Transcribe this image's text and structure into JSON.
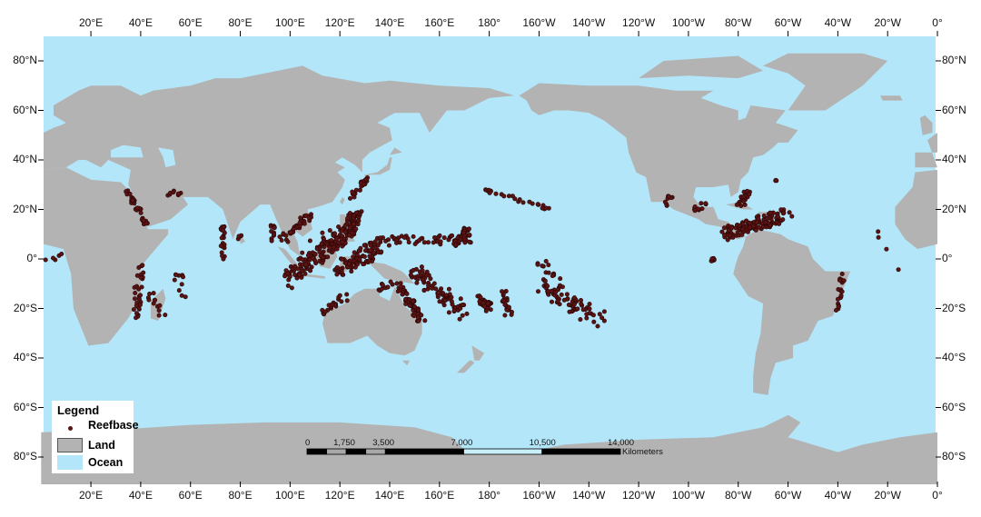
{
  "map": {
    "projection": "equirectangular",
    "central_meridian": 180,
    "colors": {
      "ocean": "#b3e6f8",
      "land": "#b3b3b3",
      "reef": "#5b1414",
      "frame": "#ffffff"
    },
    "lon_ticks": [
      {
        "lon": 20,
        "label": "20°E"
      },
      {
        "lon": 40,
        "label": "40°E"
      },
      {
        "lon": 60,
        "label": "60°E"
      },
      {
        "lon": 80,
        "label": "80°E"
      },
      {
        "lon": 100,
        "label": "100°E"
      },
      {
        "lon": 120,
        "label": "120°E"
      },
      {
        "lon": 140,
        "label": "140°E"
      },
      {
        "lon": 160,
        "label": "160°E"
      },
      {
        "lon": 180,
        "label": "180°"
      },
      {
        "lon": 200,
        "label": "160°W"
      },
      {
        "lon": 220,
        "label": "140°W"
      },
      {
        "lon": 240,
        "label": "120°W"
      },
      {
        "lon": 260,
        "label": "100°W"
      },
      {
        "lon": 280,
        "label": "80°W"
      },
      {
        "lon": 300,
        "label": "60°W"
      },
      {
        "lon": 320,
        "label": "40°W"
      },
      {
        "lon": 340,
        "label": "20°W"
      },
      {
        "lon": 360,
        "label": "0°"
      }
    ],
    "lat_ticks": [
      {
        "lat": 80,
        "label": "80°N"
      },
      {
        "lat": 60,
        "label": "60°N"
      },
      {
        "lat": 40,
        "label": "40°N"
      },
      {
        "lat": 20,
        "label": "20°N"
      },
      {
        "lat": 0,
        "label": "0°"
      },
      {
        "lat": -20,
        "label": "20°S"
      },
      {
        "lat": -40,
        "label": "40°S"
      },
      {
        "lat": -60,
        "label": "60°S"
      },
      {
        "lat": -80,
        "label": "80°S"
      }
    ]
  },
  "legend": {
    "title": "Legend",
    "items": [
      {
        "label": "Reefbase",
        "type": "point"
      },
      {
        "label": "Land",
        "type": "fill"
      },
      {
        "label": "Ocean",
        "type": "fill"
      }
    ]
  },
  "scale_bar": {
    "unit": "Kilometers",
    "max_km": 14000,
    "labels": [
      {
        "km": 0,
        "label": "0"
      },
      {
        "km": 1750,
        "label": "1,750"
      },
      {
        "km": 3500,
        "label": "3,500"
      },
      {
        "km": 7000,
        "label": "7,000"
      },
      {
        "km": 10500,
        "label": "10,500"
      },
      {
        "km": 14000,
        "label": "14,000"
      }
    ]
  }
}
